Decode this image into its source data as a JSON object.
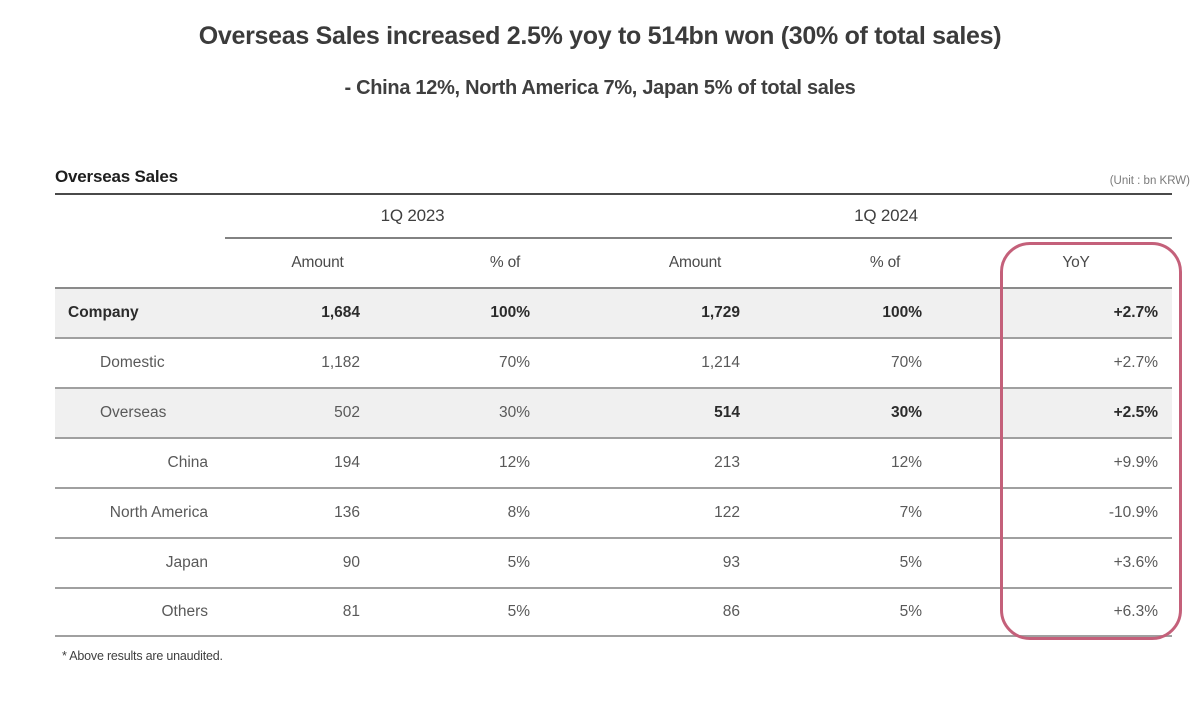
{
  "page_title": "Overseas Sales increased 2.5% yoy to 514bn won (30% of total sales)",
  "subtitle": "- China 12%, North America 7%, Japan 5% of total sales",
  "section": {
    "heading": "Overseas Sales",
    "unit_note": "(Unit : bn KRW)"
  },
  "table": {
    "group_headers": [
      "1Q 2023",
      "1Q 2024"
    ],
    "column_headers": [
      "Amount",
      "% of",
      "Amount",
      "% of",
      "YoY"
    ],
    "rows": [
      {
        "cells": [
          "Company",
          "1,684",
          "100%",
          "1,729",
          "100%",
          "+2.7%"
        ]
      },
      {
        "cells": [
          "Domestic",
          "1,182",
          "70%",
          "1,214",
          "70%",
          "+2.7%"
        ]
      },
      {
        "cells": [
          "Overseas",
          "502",
          "30%",
          "514",
          "30%",
          "+2.5%"
        ]
      },
      {
        "cells": [
          "China",
          "194",
          "12%",
          "213",
          "12%",
          "+9.9%"
        ]
      },
      {
        "cells": [
          "North America",
          "136",
          "8%",
          "122",
          "7%",
          "-10.9%"
        ]
      },
      {
        "cells": [
          "Japan",
          "90",
          "5%",
          "93",
          "5%",
          "+3.6%"
        ]
      },
      {
        "cells": [
          "Others",
          "81",
          "5%",
          "86",
          "5%",
          "+6.3%"
        ]
      }
    ]
  },
  "footnote": "* Above results are unaudited.",
  "highlight_color": "#c4607a"
}
